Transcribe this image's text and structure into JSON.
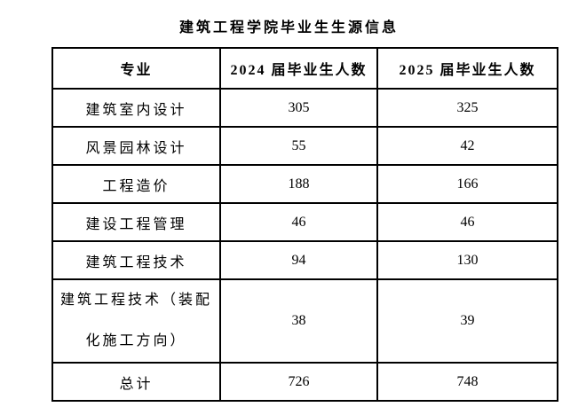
{
  "title": "建筑工程学院毕业生生源信息",
  "table": {
    "headers": [
      "专业",
      "2024 届毕业生人数",
      "2025 届毕业生人数"
    ],
    "rows": [
      {
        "major": "建筑室内设计",
        "y2024": "305",
        "y2025": "325"
      },
      {
        "major": "风景园林设计",
        "y2024": "55",
        "y2025": "42"
      },
      {
        "major": "工程造价",
        "y2024": "188",
        "y2025": "166"
      },
      {
        "major": "建设工程管理",
        "y2024": "46",
        "y2025": "46"
      },
      {
        "major": "建筑工程技术",
        "y2024": "94",
        "y2025": "130"
      },
      {
        "major": "建筑工程技术（装配化施工方向）",
        "y2024": "38",
        "y2025": "39"
      },
      {
        "major": "总计",
        "y2024": "726",
        "y2025": "748"
      }
    ]
  },
  "colors": {
    "text": "#000000",
    "border": "#000000",
    "background": "#ffffff"
  }
}
